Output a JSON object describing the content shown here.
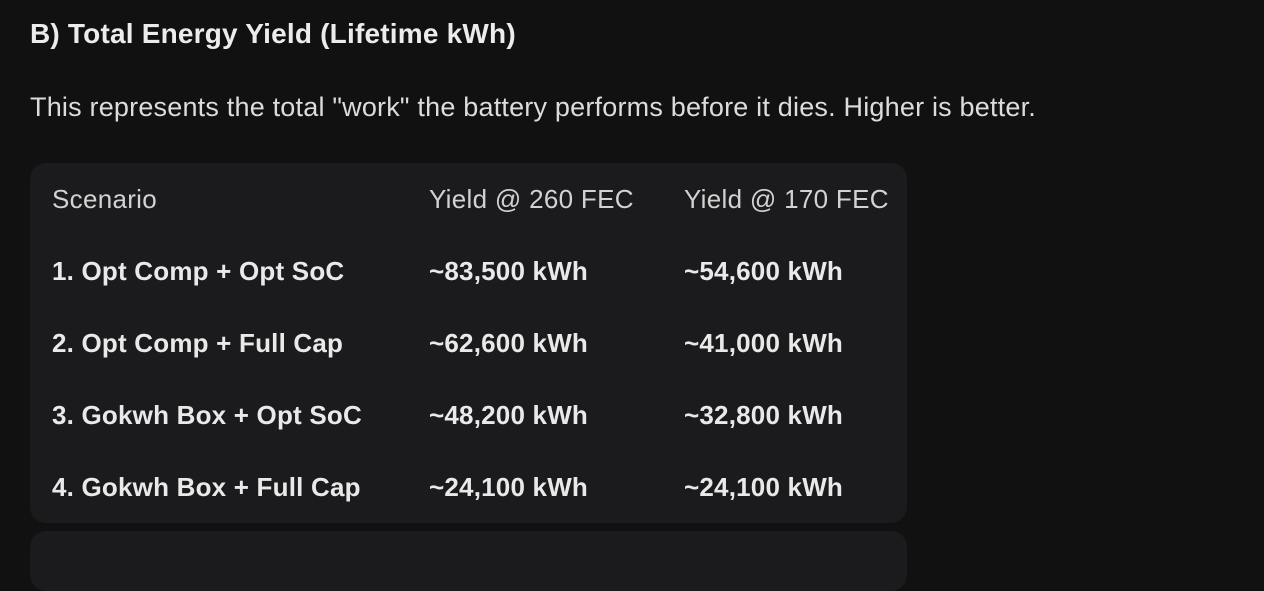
{
  "theme": {
    "page_bg": "#111112",
    "card_bg": "#1b1b1d",
    "heading_color": "#ececec",
    "body_color": "#dcdcdc",
    "header_color": "#d2d2d2",
    "cell_color": "#e9e9e9"
  },
  "section": {
    "heading": "B) Total Energy Yield (Lifetime kWh)",
    "description": "This represents the total \"work\" the battery performs before it dies. Higher is better."
  },
  "table": {
    "columns": [
      "Scenario",
      "Yield @ 260 FEC",
      "Yield @ 170 FEC"
    ],
    "rows": [
      {
        "scenario": "1. Opt Comp + Opt SoC",
        "yield_260": "~83,500 kWh",
        "yield_170": "~54,600 kWh"
      },
      {
        "scenario": "2. Opt Comp + Full Cap",
        "yield_260": "~62,600 kWh",
        "yield_170": "~41,000 kWh"
      },
      {
        "scenario": "3. Gokwh Box + Opt SoC",
        "yield_260": "~48,200 kWh",
        "yield_170": "~32,800 kWh"
      },
      {
        "scenario": "4. Gokwh Box + Full Cap",
        "yield_260": "~24,100 kWh",
        "yield_170": "~24,100 kWh"
      }
    ]
  }
}
